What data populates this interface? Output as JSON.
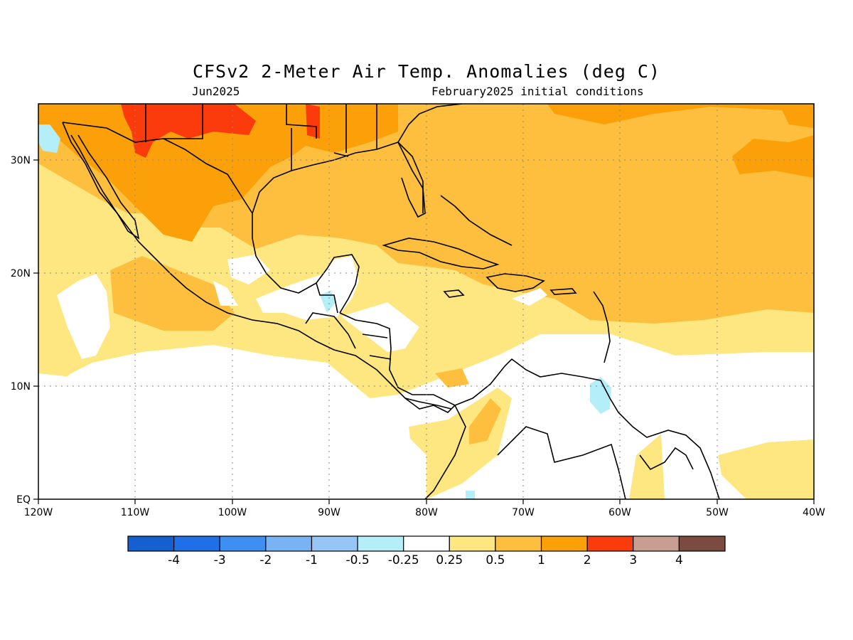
{
  "map": {
    "title": "CFSv2 2-Meter Air Temp. Anomalies (deg C)",
    "valid_month": "Jun2025",
    "initial_conditions": "February2025 initial conditions",
    "region": "Central America / Caribbean",
    "lon_range": [
      -120,
      -40
    ],
    "lat_range": [
      0,
      35
    ],
    "lon_ticks": [
      "120W",
      "110W",
      "100W",
      "90W",
      "80W",
      "70W",
      "60W",
      "50W",
      "40W"
    ],
    "lat_ticks": [
      "EQ",
      "10N",
      "20N",
      "30N"
    ],
    "grid": "dotted"
  },
  "colorbar": {
    "colors": [
      "#1560d0",
      "#1f6fe8",
      "#3d8ff2",
      "#78b4f4",
      "#96c6f6",
      "#b4eef8",
      "#ffffff",
      "#fee680",
      "#fdbf3d",
      "#fca00a",
      "#fb3b0c",
      "#c89e90",
      "#7b4b40"
    ],
    "labels": [
      "-4",
      "-3",
      "-2",
      "-1",
      "-0.5",
      "-0.25",
      "0.25",
      "0.5",
      "1",
      "2",
      "3",
      "4"
    ]
  },
  "legend_colors": {
    "anomaly_0_25_0_5": "#fee680",
    "anomaly_0_5_1": "#fdbf3d",
    "anomaly_1_2": "#fca00a",
    "anomaly_2_3": "#fb3b0c",
    "anomaly_neg_0_25_neg_0_5": "#b4eef8"
  }
}
